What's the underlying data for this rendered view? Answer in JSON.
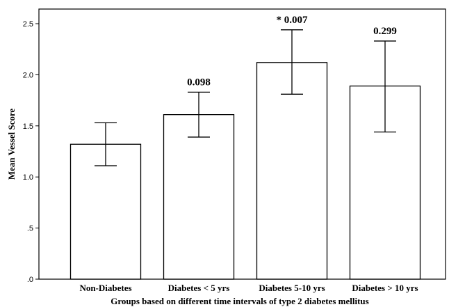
{
  "chart_data": {
    "type": "bar",
    "title": "",
    "xlabel": "Groups based on different time intervals of type 2 diabetes mellitus",
    "ylabel": "Mean Vessel Score",
    "ylim": [
      0,
      2.6
    ],
    "yticks": [
      0,
      0.5,
      1.0,
      1.5,
      2.0,
      2.5
    ],
    "ytick_labels": [
      ".0",
      ".5",
      "1.0",
      "1.5",
      "2.0",
      "2.5"
    ],
    "categories": [
      "Non-Diabetes",
      "Diabetes < 5 yrs",
      "Diabetes 5-10 yrs",
      "Diabetes > 10 yrs"
    ],
    "values": [
      1.32,
      1.61,
      2.12,
      1.89
    ],
    "error_low": [
      1.11,
      1.39,
      1.81,
      1.44
    ],
    "error_high": [
      1.53,
      1.83,
      2.44,
      2.33
    ],
    "annotations": [
      "",
      "0.098",
      "* 0.007",
      "0.299"
    ],
    "grid": false,
    "bar_fill": "#ffffff",
    "bar_edge": "#000000"
  }
}
